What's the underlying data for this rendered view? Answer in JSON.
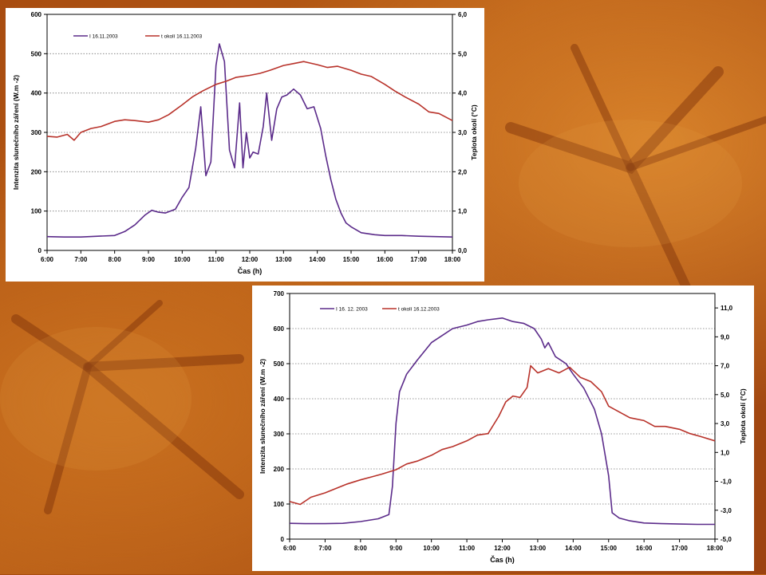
{
  "chart_data": [
    {
      "type": "line",
      "xlabel": "Čas (h)",
      "ylabel": "Intenzita slunečního záření (W.m -2)",
      "y2label": "Teplota okolí (°C)",
      "xticks": [
        "6:00",
        "7:00",
        "8:00",
        "9:00",
        "10:00",
        "11:00",
        "12:00",
        "13:00",
        "14:00",
        "15:00",
        "16:00",
        "17:00",
        "18:00"
      ],
      "ylim": [
        0,
        600
      ],
      "yticks": [
        "0",
        "100",
        "200",
        "300",
        "400",
        "500",
        "600"
      ],
      "y2lim": [
        0,
        6
      ],
      "y2ticks": [
        "0,0",
        "1,0",
        "2,0",
        "3,0",
        "4,0",
        "5,0",
        "6,0"
      ],
      "grid": "horizontal-dotted",
      "legend": "top-left",
      "series": [
        {
          "name": "I 16.11.2003",
          "axis": "left",
          "color": "#5b2b8a",
          "x": [
            6,
            6.5,
            7,
            7.5,
            8,
            8.3,
            8.6,
            8.9,
            9.1,
            9.3,
            9.5,
            9.8,
            10,
            10.2,
            10.4,
            10.55,
            10.7,
            10.85,
            11,
            11.1,
            11.25,
            11.4,
            11.55,
            11.7,
            11.8,
            11.9,
            12,
            12.1,
            12.25,
            12.4,
            12.5,
            12.65,
            12.8,
            12.95,
            13.1,
            13.3,
            13.5,
            13.7,
            13.9,
            14.1,
            14.25,
            14.4,
            14.55,
            14.7,
            14.85,
            15,
            15.3,
            15.7,
            16,
            16.5,
            17,
            17.5,
            18
          ],
          "values": [
            35,
            34,
            34,
            36,
            38,
            48,
            65,
            90,
            102,
            97,
            95,
            105,
            135,
            160,
            260,
            365,
            190,
            225,
            470,
            525,
            480,
            255,
            210,
            375,
            210,
            300,
            235,
            250,
            245,
            315,
            400,
            280,
            360,
            390,
            395,
            410,
            395,
            360,
            365,
            310,
            240,
            180,
            130,
            95,
            70,
            60,
            45,
            40,
            38,
            38,
            36,
            35,
            34
          ]
        },
        {
          "name": "t okolí 16.11.2003",
          "axis": "right",
          "color": "#b8322a",
          "x": [
            6,
            6.3,
            6.6,
            6.8,
            7,
            7.3,
            7.6,
            8,
            8.3,
            8.6,
            9,
            9.3,
            9.6,
            10,
            10.3,
            10.6,
            11,
            11.3,
            11.6,
            12,
            12.3,
            12.6,
            13,
            13.3,
            13.6,
            14,
            14.3,
            14.6,
            15,
            15.3,
            15.6,
            16,
            16.3,
            16.6,
            17,
            17.3,
            17.6,
            18
          ],
          "values": [
            2.9,
            2.88,
            2.95,
            2.8,
            3.0,
            3.1,
            3.15,
            3.28,
            3.32,
            3.3,
            3.26,
            3.32,
            3.45,
            3.7,
            3.9,
            4.05,
            4.22,
            4.3,
            4.4,
            4.45,
            4.5,
            4.58,
            4.7,
            4.75,
            4.8,
            4.72,
            4.65,
            4.68,
            4.58,
            4.48,
            4.42,
            4.22,
            4.05,
            3.9,
            3.72,
            3.52,
            3.48,
            3.3
          ]
        }
      ]
    },
    {
      "type": "line",
      "xlabel": "Čas (h)",
      "ylabel": "Intenzita slunečního záření (W.m -2)",
      "y2label": "Teplota okolí (°C)",
      "xticks": [
        "6:00",
        "7:00",
        "8:00",
        "9:00",
        "10:00",
        "11:00",
        "12:00",
        "13:00",
        "14:00",
        "15:00",
        "16:00",
        "17:00",
        "18:00"
      ],
      "ylim": [
        0,
        700
      ],
      "yticks": [
        "0",
        "100",
        "200",
        "300",
        "400",
        "500",
        "600",
        "700"
      ],
      "y2lim": [
        -5,
        12
      ],
      "y2ticks": [
        "-5,0",
        "-3,0",
        "-1,0",
        "1,0",
        "3,0",
        "5,0",
        "7,0",
        "9,0",
        "11,0"
      ],
      "grid": "horizontal-dotted",
      "legend": "top-left",
      "series": [
        {
          "name": "I 16. 12. 2003",
          "axis": "left",
          "color": "#5b2b8a",
          "x": [
            6,
            6.5,
            7,
            7.5,
            8,
            8.5,
            8.8,
            8.9,
            9,
            9.1,
            9.3,
            9.6,
            10,
            10.3,
            10.6,
            11,
            11.3,
            11.6,
            12,
            12.3,
            12.6,
            12.9,
            13.1,
            13.2,
            13.3,
            13.5,
            13.8,
            14,
            14.3,
            14.6,
            14.8,
            15,
            15.1,
            15.3,
            15.6,
            16,
            16.5,
            17,
            17.5,
            18
          ],
          "values": [
            45,
            44,
            44,
            45,
            50,
            58,
            70,
            150,
            330,
            420,
            470,
            510,
            560,
            580,
            600,
            610,
            620,
            625,
            630,
            620,
            615,
            600,
            570,
            545,
            560,
            520,
            500,
            470,
            430,
            370,
            300,
            180,
            75,
            60,
            52,
            46,
            44,
            43,
            42,
            42
          ]
        },
        {
          "name": "t okolí 16.12.2003",
          "axis": "right",
          "color": "#b8322a",
          "x": [
            6,
            6.3,
            6.6,
            7,
            7.3,
            7.6,
            8,
            8.3,
            8.6,
            9,
            9.3,
            9.6,
            10,
            10.3,
            10.6,
            11,
            11.3,
            11.6,
            11.9,
            12.1,
            12.3,
            12.5,
            12.7,
            12.8,
            13,
            13.3,
            13.6,
            13.9,
            14.2,
            14.5,
            14.8,
            15,
            15.3,
            15.6,
            16,
            16.3,
            16.6,
            17,
            17.3,
            17.6,
            18
          ],
          "values": [
            -2.4,
            -2.6,
            -2.1,
            -1.8,
            -1.5,
            -1.2,
            -0.9,
            -0.7,
            -0.5,
            -0.2,
            0.2,
            0.4,
            0.8,
            1.2,
            1.4,
            1.8,
            2.2,
            2.3,
            3.5,
            4.5,
            4.9,
            4.8,
            5.5,
            7.0,
            6.5,
            6.8,
            6.5,
            6.9,
            6.2,
            5.9,
            5.2,
            4.2,
            3.8,
            3.4,
            3.2,
            2.8,
            2.8,
            2.6,
            2.3,
            2.1,
            1.8
          ]
        }
      ]
    }
  ]
}
